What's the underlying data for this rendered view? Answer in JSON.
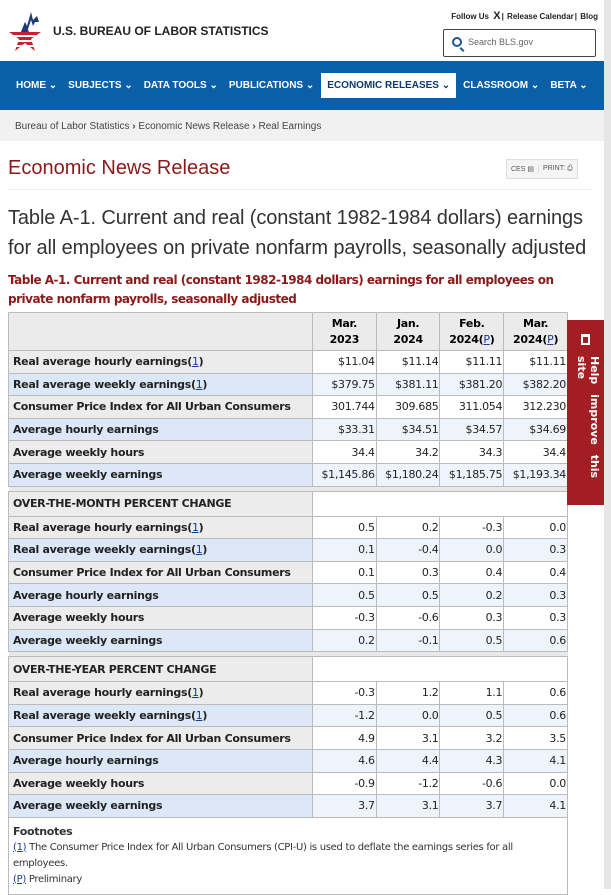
{
  "header": {
    "site_title": "U.S. BUREAU OF LABOR STATISTICS",
    "follow_us": "Follow Us",
    "x_icon": "X",
    "release_calendar": "Release Calendar",
    "blog": "Blog",
    "search_placeholder": "Search BLS.gov"
  },
  "nav": [
    "HOME",
    "SUBJECTS",
    "DATA TOOLS",
    "PUBLICATIONS",
    "ECONOMIC RELEASES",
    "CLASSROOM",
    "BETA"
  ],
  "breadcrumb": [
    "Bureau of Labor Statistics",
    "Economic News Release",
    "Real Earnings"
  ],
  "page_title": "Economic News Release",
  "tools": {
    "ces": "CES",
    "print": "PRINT:"
  },
  "table_title": "Table A-1. Current and real (constant 1982-1984 dollars) earnings for all employees on private nonfarm payrolls, seasonally adjusted",
  "table": {
    "caption": "Table A-1. Current and real (constant 1982-1984 dollars) earnings for all employees on private nonfarm payrolls, seasonally adjusted",
    "columns": [
      {
        "m": "Mar.",
        "y": "2023",
        "p": ""
      },
      {
        "m": "Jan.",
        "y": "2024",
        "p": ""
      },
      {
        "m": "Feb.",
        "y": "2024",
        "p": "P"
      },
      {
        "m": "Mar.",
        "y": "2024",
        "p": "P"
      }
    ],
    "levels": [
      {
        "label": "Real average hourly earnings",
        "fn": "1",
        "values": [
          "$11.04",
          "$11.14",
          "$11.11",
          "$11.11"
        ]
      },
      {
        "label": "Real average weekly earnings",
        "fn": "1",
        "values": [
          "$379.75",
          "$381.11",
          "$381.20",
          "$382.20"
        ]
      },
      {
        "label": "Consumer Price Index for All Urban Consumers",
        "fn": "",
        "values": [
          "301.744",
          "309.685",
          "311.054",
          "312.230"
        ]
      },
      {
        "label": "Average hourly earnings",
        "fn": "",
        "values": [
          "$33.31",
          "$34.51",
          "$34.57",
          "$34.69"
        ]
      },
      {
        "label": "Average weekly hours",
        "fn": "",
        "values": [
          "34.4",
          "34.2",
          "34.3",
          "34.4"
        ]
      },
      {
        "label": "Average weekly earnings",
        "fn": "",
        "values": [
          "$1,145.86",
          "$1,180.24",
          "$1,185.75",
          "$1,193.34"
        ]
      }
    ],
    "sections": [
      {
        "title": "OVER-THE-MONTH PERCENT CHANGE",
        "rows": [
          {
            "label": "Real average hourly earnings",
            "fn": "1",
            "values": [
              "0.5",
              "0.2",
              "-0.3",
              "0.0"
            ]
          },
          {
            "label": "Real average weekly earnings",
            "fn": "1",
            "values": [
              "0.1",
              "-0.4",
              "0.0",
              "0.3"
            ]
          },
          {
            "label": "Consumer Price Index for All Urban Consumers",
            "fn": "",
            "values": [
              "0.1",
              "0.3",
              "0.4",
              "0.4"
            ]
          },
          {
            "label": "Average hourly earnings",
            "fn": "",
            "values": [
              "0.5",
              "0.5",
              "0.2",
              "0.3"
            ]
          },
          {
            "label": "Average weekly hours",
            "fn": "",
            "values": [
              "-0.3",
              "-0.6",
              "0.3",
              "0.3"
            ]
          },
          {
            "label": "Average weekly earnings",
            "fn": "",
            "values": [
              "0.2",
              "-0.1",
              "0.5",
              "0.6"
            ]
          }
        ]
      },
      {
        "title": "OVER-THE-YEAR PERCENT CHANGE",
        "rows": [
          {
            "label": "Real average hourly earnings",
            "fn": "1",
            "values": [
              "-0.3",
              "1.2",
              "1.1",
              "0.6"
            ]
          },
          {
            "label": "Real average weekly earnings",
            "fn": "1",
            "values": [
              "-1.2",
              "0.0",
              "0.5",
              "0.6"
            ]
          },
          {
            "label": "Consumer Price Index for All Urban Consumers",
            "fn": "",
            "values": [
              "4.9",
              "3.1",
              "3.2",
              "3.5"
            ]
          },
          {
            "label": "Average hourly earnings",
            "fn": "",
            "values": [
              "4.6",
              "4.4",
              "4.3",
              "4.1"
            ]
          },
          {
            "label": "Average weekly hours",
            "fn": "",
            "values": [
              "-0.9",
              "-1.2",
              "-0.6",
              "0.0"
            ]
          },
          {
            "label": "Average weekly earnings",
            "fn": "",
            "values": [
              "3.7",
              "3.1",
              "3.7",
              "4.1"
            ]
          }
        ]
      }
    ],
    "footnotes_title": "Footnotes",
    "footnotes": [
      {
        "mark": "(1)",
        "text": " The Consumer Price Index for All Urban Consumers (CPI-U) is used to deflate the earnings series for all employees."
      },
      {
        "mark": "(P)",
        "text": " Preliminary"
      }
    ]
  },
  "help_tab": "Help improve this site",
  "colors": {
    "nav": "#0b5ea8",
    "accent": "#8b1a1a",
    "help": "#a31e22"
  }
}
